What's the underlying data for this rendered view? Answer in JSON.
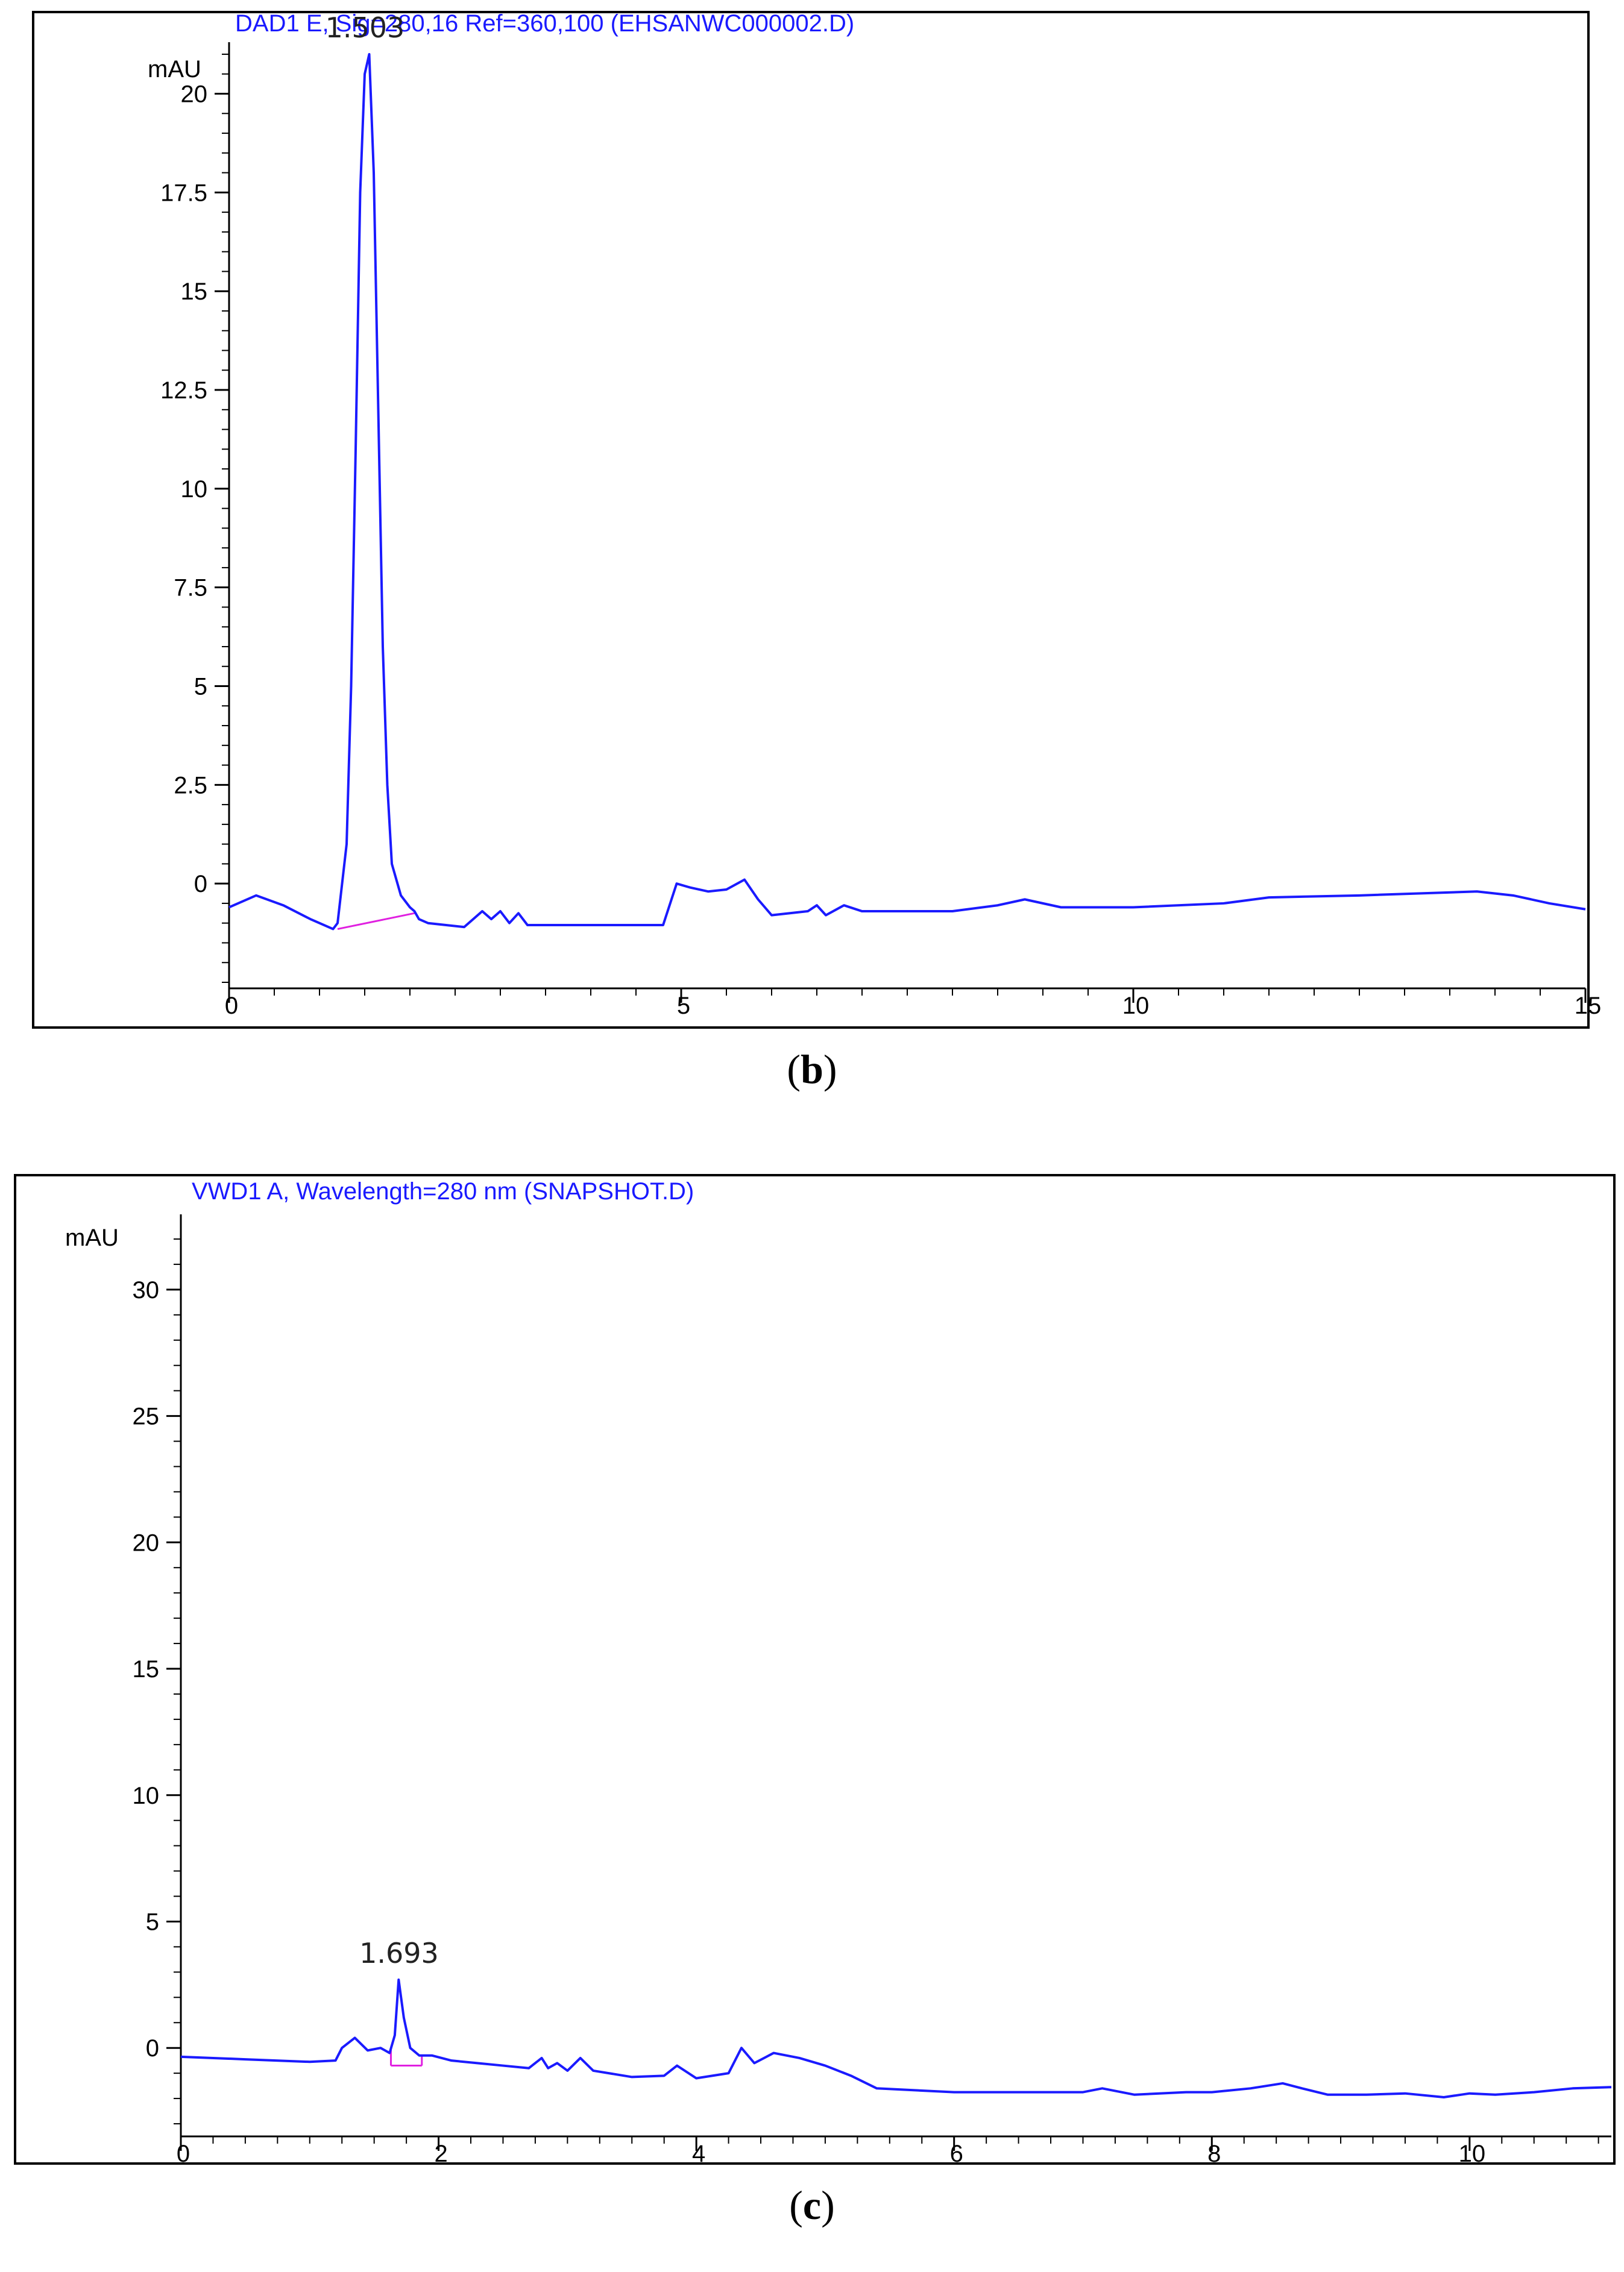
{
  "chart_data": [
    {
      "id": "b",
      "type": "line",
      "caption": "b",
      "title": "DAD1 E, Sig=280,16 Ref=360,100 (EHSANWC000002.D)",
      "ylabel": "mAU",
      "xlim": [
        0,
        15
      ],
      "ylim": [
        -2.5,
        21
      ],
      "yticks": [
        0,
        2.5,
        5,
        7.5,
        10,
        12.5,
        15,
        17.5,
        20
      ],
      "ytick_labels": [
        "0",
        "2.5",
        "5",
        "7.5",
        "10",
        "12.5",
        "15",
        "17.5",
        "20"
      ],
      "xticks": [
        0,
        5,
        10,
        15
      ],
      "xtick_labels": [
        "0",
        "5",
        "10",
        "15"
      ],
      "line_color": "#1a1aff",
      "baseline_color": "#e020e0",
      "peak_label": "1.503",
      "peak": {
        "x": 1.503,
        "y": 21
      },
      "baseline": {
        "x": [
          1.2,
          2.05
        ],
        "y": [
          -1.15,
          -0.75
        ]
      },
      "series": [
        {
          "x": [
            0,
            0.3,
            0.6,
            0.9,
            1.15,
            1.2,
            1.3,
            1.35,
            1.4,
            1.45,
            1.5,
            1.55,
            1.6,
            1.65,
            1.7,
            1.75,
            1.8,
            1.9,
            2.0,
            2.05,
            2.1,
            2.2,
            2.6,
            2.8,
            2.9,
            3.0,
            3.1,
            3.2,
            3.3,
            4.8,
            4.95,
            5.1,
            5.3,
            5.5,
            5.7,
            5.85,
            6.0,
            6.4,
            6.5,
            6.6,
            6.8,
            7.0,
            8.0,
            8.5,
            8.8,
            9.2,
            10.0,
            11.0,
            11.5,
            12.5,
            13.8,
            14.2,
            14.6,
            15.0
          ],
          "y": [
            -0.6,
            -0.3,
            -0.55,
            -0.9,
            -1.15,
            -1.0,
            1.0,
            5.0,
            11.0,
            17.5,
            20.5,
            21.0,
            18.0,
            12.0,
            6.0,
            2.5,
            0.5,
            -0.3,
            -0.6,
            -0.7,
            -0.9,
            -1.0,
            -1.1,
            -0.7,
            -0.9,
            -0.7,
            -1.0,
            -0.75,
            -1.05,
            -1.05,
            0.0,
            -0.1,
            -0.2,
            -0.15,
            0.1,
            -0.4,
            -0.8,
            -0.7,
            -0.55,
            -0.8,
            -0.55,
            -0.7,
            -0.7,
            -0.55,
            -0.4,
            -0.6,
            -0.6,
            -0.5,
            -0.35,
            -0.3,
            -0.2,
            -0.3,
            -0.5,
            -0.65
          ]
        }
      ]
    },
    {
      "id": "c",
      "type": "line",
      "caption": "c",
      "title": "VWD1 A, Wavelength=280 nm (SNAPSHOT.D)",
      "ylabel": "mAU",
      "xlim": [
        0,
        11.1
      ],
      "ylim": [
        -3.5,
        32.5
      ],
      "yticks": [
        0,
        5,
        10,
        15,
        20,
        25,
        30
      ],
      "ytick_labels": [
        "0",
        "5",
        "10",
        "15",
        "20",
        "25",
        "30"
      ],
      "xticks": [
        0,
        2,
        4,
        6,
        8,
        10
      ],
      "xtick_labels": [
        "0",
        "2",
        "4",
        "6",
        "8",
        "10"
      ],
      "line_color": "#1a1aff",
      "baseline_color": "#e020e0",
      "peak_label": "1.693",
      "peak": {
        "x": 1.693,
        "y": 2.7
      },
      "baseline": {
        "x": [
          1.63,
          1.87
        ],
        "y": [
          -0.7,
          -0.7
        ]
      },
      "series": [
        {
          "x": [
            0,
            0.5,
            1.0,
            1.2,
            1.25,
            1.35,
            1.45,
            1.55,
            1.62,
            1.66,
            1.69,
            1.73,
            1.78,
            1.85,
            1.95,
            2.1,
            2.3,
            2.5,
            2.7,
            2.8,
            2.85,
            2.92,
            3.0,
            3.1,
            3.2,
            3.5,
            3.75,
            3.85,
            4.0,
            4.25,
            4.35,
            4.45,
            4.6,
            4.8,
            5.0,
            5.2,
            5.4,
            6.0,
            6.5,
            7.0,
            7.15,
            7.4,
            7.8,
            8.0,
            8.3,
            8.55,
            8.7,
            8.9,
            9.2,
            9.5,
            9.8,
            10.0,
            10.2,
            10.5,
            10.8,
            11.1
          ],
          "y": [
            -0.35,
            -0.45,
            -0.55,
            -0.5,
            0.0,
            0.4,
            -0.1,
            0.0,
            -0.2,
            0.5,
            2.7,
            1.2,
            0.0,
            -0.3,
            -0.3,
            -0.5,
            -0.6,
            -0.7,
            -0.8,
            -0.4,
            -0.8,
            -0.6,
            -0.9,
            -0.4,
            -0.9,
            -1.15,
            -1.1,
            -0.7,
            -1.2,
            -1.0,
            0.0,
            -0.6,
            -0.2,
            -0.4,
            -0.7,
            -1.1,
            -1.6,
            -1.75,
            -1.75,
            -1.75,
            -1.6,
            -1.85,
            -1.75,
            -1.75,
            -1.6,
            -1.4,
            -1.6,
            -1.85,
            -1.85,
            -1.8,
            -1.95,
            -1.8,
            -1.85,
            -1.75,
            -1.6,
            -1.55
          ]
        }
      ]
    }
  ]
}
